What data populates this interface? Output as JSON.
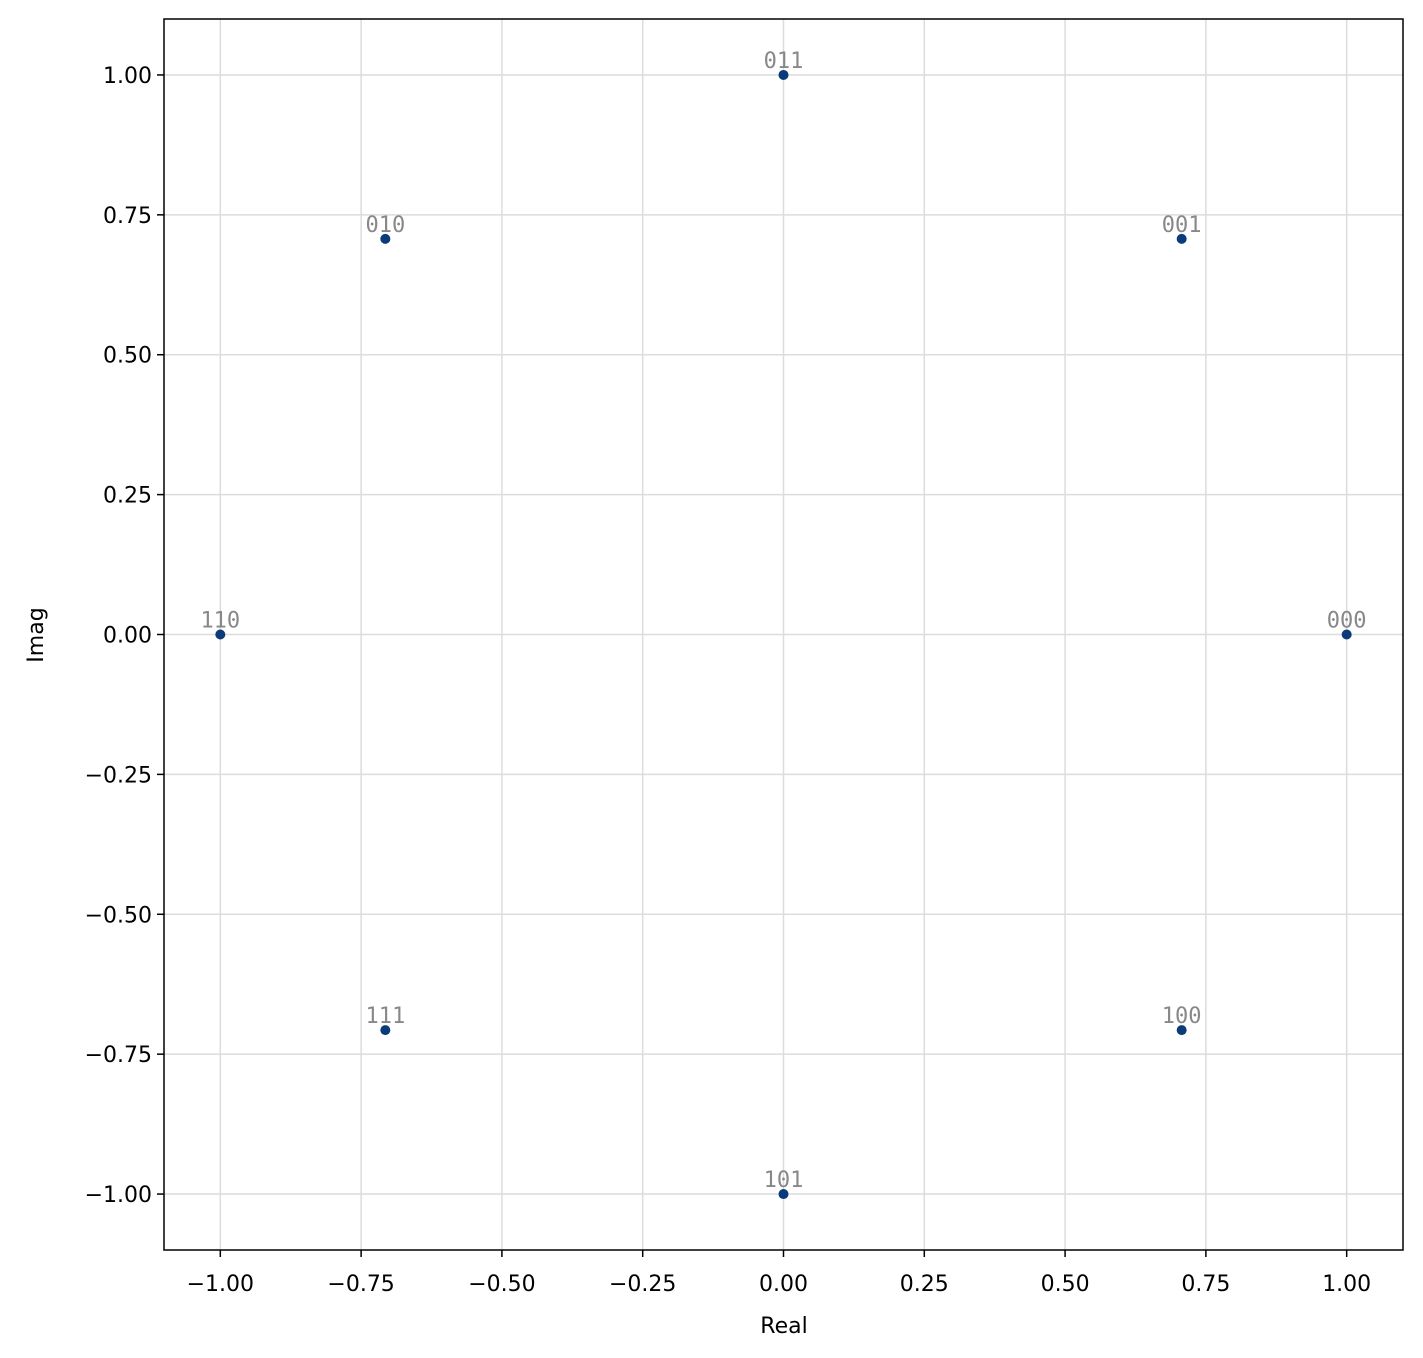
{
  "chart_data": {
    "type": "scatter",
    "x_label": "Real",
    "y_label": "Imag",
    "xlim": [
      -1.1,
      1.1
    ],
    "ylim": [
      -1.1,
      1.1
    ],
    "xticks": [
      {
        "value": -1,
        "label": "−1.00"
      },
      {
        "value": -0.75,
        "label": "−0.75"
      },
      {
        "value": -0.5,
        "label": "−0.50"
      },
      {
        "value": -0.25,
        "label": "−0.25"
      },
      {
        "value": 0,
        "label": "0.00"
      },
      {
        "value": 0.25,
        "label": "0.25"
      },
      {
        "value": 0.5,
        "label": "0.50"
      },
      {
        "value": 0.75,
        "label": "0.75"
      },
      {
        "value": 1,
        "label": "1.00"
      }
    ],
    "yticks": [
      {
        "value": -1,
        "label": "−1.00"
      },
      {
        "value": -0.75,
        "label": "−0.75"
      },
      {
        "value": -0.5,
        "label": "−0.50"
      },
      {
        "value": -0.25,
        "label": "−0.25"
      },
      {
        "value": 0,
        "label": "0.00"
      },
      {
        "value": 0.25,
        "label": "0.25"
      },
      {
        "value": 0.5,
        "label": "0.50"
      },
      {
        "value": 0.75,
        "label": "0.75"
      },
      {
        "value": 1,
        "label": "1.00"
      }
    ],
    "grid": true,
    "series": [
      {
        "color": "#0b3b78",
        "x": [
          1,
          0.707,
          0,
          -0.707,
          -1,
          -0.707,
          0,
          0.707
        ],
        "values": [
          0,
          0.707,
          1,
          0.707,
          0,
          -0.707,
          -1,
          -0.707
        ],
        "labels": [
          "000",
          "001",
          "011",
          "010",
          "110",
          "111",
          "101",
          "100"
        ]
      }
    ]
  }
}
